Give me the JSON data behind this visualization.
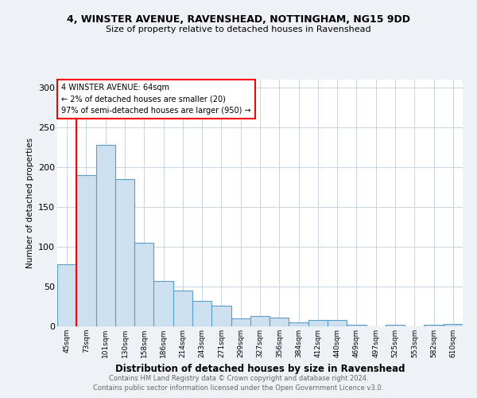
{
  "title_line1": "4, WINSTER AVENUE, RAVENSHEAD, NOTTINGHAM, NG15 9DD",
  "title_line2": "Size of property relative to detached houses in Ravenshead",
  "xlabel": "Distribution of detached houses by size in Ravenshead",
  "ylabel": "Number of detached properties",
  "categories": [
    "45sqm",
    "73sqm",
    "101sqm",
    "130sqm",
    "158sqm",
    "186sqm",
    "214sqm",
    "243sqm",
    "271sqm",
    "299sqm",
    "327sqm",
    "356sqm",
    "384sqm",
    "412sqm",
    "440sqm",
    "469sqm",
    "497sqm",
    "525sqm",
    "553sqm",
    "582sqm",
    "610sqm"
  ],
  "values": [
    78,
    190,
    228,
    185,
    105,
    57,
    45,
    32,
    26,
    10,
    13,
    11,
    5,
    8,
    8,
    2,
    0,
    2,
    0,
    2,
    3
  ],
  "bar_color": "#cde0f0",
  "bar_edge_color": "#5a9ec8",
  "annotation_name": "4 WINSTER AVENUE: 64sqm",
  "annotation_line2": "← 2% of detached houses are smaller (20)",
  "annotation_line3": "97% of semi-detached houses are larger (950) →",
  "ylim": [
    0,
    310
  ],
  "yticks": [
    0,
    50,
    100,
    150,
    200,
    250,
    300
  ],
  "footer_line1": "Contains HM Land Registry data © Crown copyright and database right 2024.",
  "footer_line2": "Contains public sector information licensed under the Open Government Licence v3.0.",
  "bg_color": "#eef2f7",
  "plot_bg_color": "#ffffff",
  "grid_color": "#c5d5e5"
}
